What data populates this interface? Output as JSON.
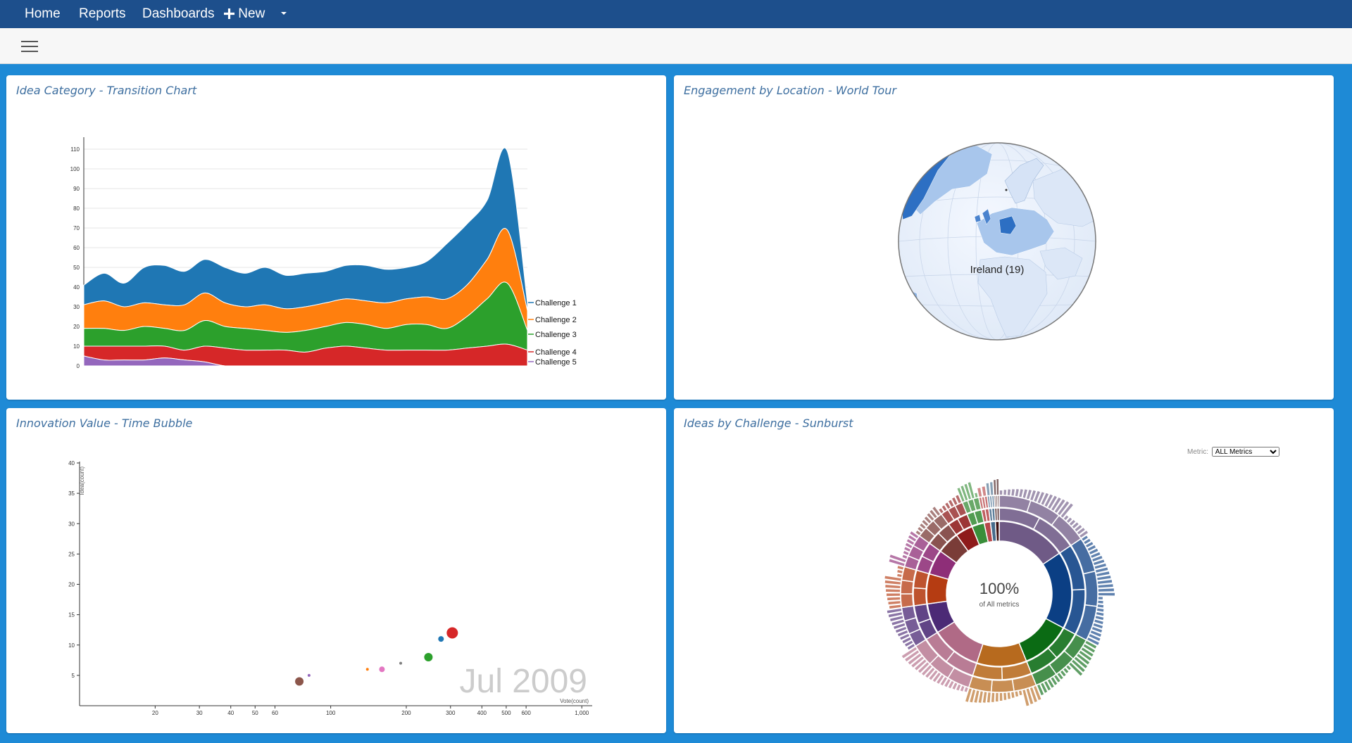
{
  "nav": {
    "home": "Home",
    "reports": "Reports",
    "dashboards": "Dashboards",
    "new": "New",
    "plus_icon": "plus-icon",
    "caret_icon": "caret-down-icon"
  },
  "panels": {
    "transition": {
      "title": "Idea Category - Transition Chart"
    },
    "world": {
      "title": "Engagement by Location - World Tour",
      "label": "Ireland (19)"
    },
    "bubble": {
      "title": "Innovation Value - Time Bubble",
      "date_label": "Jul 2009"
    },
    "sunburst": {
      "title": "Ideas by Challenge - Sunburst",
      "metric_label": "Metric:",
      "metric_value": "ALL Metrics",
      "center_value": "100%",
      "center_label": "of All metrics"
    }
  },
  "colors": {
    "nav": "#1d4f8c",
    "background": "#1e8ad6",
    "c1": "#1f77b4",
    "c2": "#ff7f0e",
    "c3": "#2ca02c",
    "c4": "#d62728",
    "c5": "#9467bd"
  },
  "chart_data": [
    {
      "type": "area",
      "stacked": true,
      "ylim": [
        0,
        115
      ],
      "y_ticks": [
        0,
        10,
        20,
        30,
        40,
        50,
        60,
        70,
        80,
        90,
        100,
        110
      ],
      "x": [
        0,
        1,
        2,
        3,
        4,
        5,
        6,
        7,
        8,
        9,
        10,
        11,
        12,
        13,
        14,
        15,
        16,
        17,
        18,
        19,
        20,
        21,
        22
      ],
      "series": [
        {
          "name": "Challenge 5",
          "values": [
            5,
            3,
            3,
            3,
            4,
            3,
            2,
            0,
            0,
            0,
            0,
            0,
            0,
            0,
            0,
            0,
            0,
            0,
            0,
            0,
            0,
            0,
            0
          ]
        },
        {
          "name": "Challenge 4",
          "values": [
            5,
            7,
            7,
            7,
            6,
            5,
            8,
            9,
            8,
            8,
            8,
            7,
            9,
            10,
            9,
            8,
            8,
            8,
            8,
            9,
            10,
            11,
            8
          ]
        },
        {
          "name": "Challenge 3",
          "values": [
            9,
            9,
            8,
            10,
            9,
            10,
            13,
            11,
            11,
            10,
            9,
            11,
            11,
            12,
            12,
            11,
            13,
            13,
            11,
            16,
            24,
            31,
            10
          ]
        },
        {
          "name": "Challenge 2",
          "values": [
            12,
            14,
            12,
            12,
            12,
            13,
            14,
            12,
            11,
            13,
            12,
            12,
            12,
            12,
            12,
            13,
            13,
            14,
            15,
            16,
            20,
            27,
            10
          ]
        },
        {
          "name": "Challenge 1",
          "values": [
            10,
            14,
            12,
            18,
            20,
            17,
            17,
            18,
            17,
            19,
            17,
            17,
            16,
            17,
            18,
            17,
            16,
            18,
            28,
            31,
            30,
            40,
            4
          ]
        }
      ]
    },
    {
      "type": "scatter",
      "x_scale": "log",
      "xlabel": "Vote(count)",
      "ylabel": "Idea(count)",
      "ylim": [
        0,
        40
      ],
      "y_ticks": [
        5,
        10,
        15,
        20,
        25,
        30,
        35,
        40
      ],
      "x_ticks": [
        20,
        30,
        40,
        50,
        60,
        100,
        200,
        300,
        400,
        500,
        600,
        1000
      ],
      "x_tick_labels": [
        "20",
        "30",
        "40",
        "50",
        "60",
        "100",
        "200",
        "300",
        "400",
        "500",
        "600",
        "1,000"
      ],
      "points": [
        {
          "x": 75,
          "y": 4,
          "size": 6,
          "color": "#8c564b"
        },
        {
          "x": 82,
          "y": 5,
          "size": 2,
          "color": "#9467bd"
        },
        {
          "x": 140,
          "y": 6,
          "size": 2,
          "color": "#ff7f0e"
        },
        {
          "x": 160,
          "y": 6,
          "size": 4,
          "color": "#e377c2"
        },
        {
          "x": 190,
          "y": 7,
          "size": 2,
          "color": "#7f7f7f"
        },
        {
          "x": 245,
          "y": 8,
          "size": 6,
          "color": "#2ca02c"
        },
        {
          "x": 275,
          "y": 11,
          "size": 4,
          "color": "#1f77b4"
        },
        {
          "x": 305,
          "y": 12,
          "size": 8,
          "color": "#d62728"
        }
      ]
    }
  ]
}
